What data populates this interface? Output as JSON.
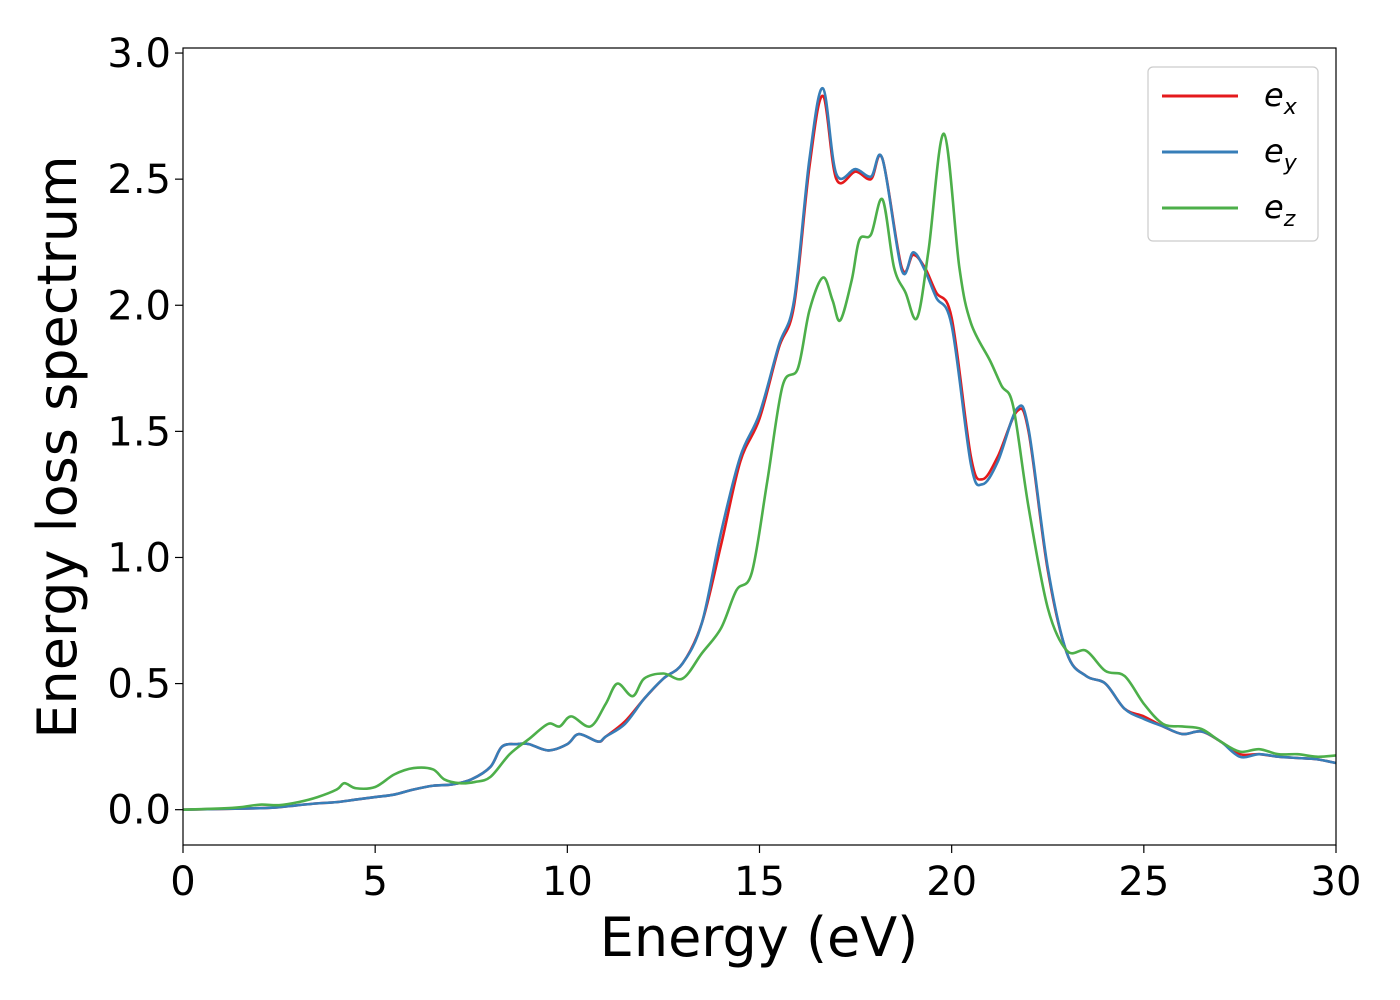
{
  "chart_data": {
    "type": "line",
    "title": "",
    "xlabel": "Energy (eV)",
    "ylabel": "Energy loss spectrum",
    "xlim": [
      0,
      30
    ],
    "ylim": [
      -0.14,
      3.02
    ],
    "xticks": [
      "0",
      "5",
      "10",
      "15",
      "20",
      "25",
      "30"
    ],
    "yticks": [
      "0.0",
      "0.5",
      "1.0",
      "1.5",
      "2.0",
      "2.5",
      "3.0"
    ],
    "grid": false,
    "legend_position": "top-right",
    "series": [
      {
        "name": "e",
        "sub": "x",
        "color": "#e41a1c",
        "points": [
          [
            0,
            0
          ],
          [
            1,
            0.003
          ],
          [
            2,
            0.006
          ],
          [
            2.5,
            0.01
          ],
          [
            3,
            0.018
          ],
          [
            3.5,
            0.025
          ],
          [
            4,
            0.03
          ],
          [
            4.5,
            0.04
          ],
          [
            5,
            0.05
          ],
          [
            5.5,
            0.06
          ],
          [
            6,
            0.08
          ],
          [
            6.5,
            0.095
          ],
          [
            7,
            0.1
          ],
          [
            7.5,
            0.12
          ],
          [
            8,
            0.17
          ],
          [
            8.3,
            0.25
          ],
          [
            8.7,
            0.26
          ],
          [
            9,
            0.26
          ],
          [
            9.5,
            0.235
          ],
          [
            10,
            0.26
          ],
          [
            10.3,
            0.3
          ],
          [
            10.8,
            0.27
          ],
          [
            11,
            0.29
          ],
          [
            11.5,
            0.35
          ],
          [
            12,
            0.44
          ],
          [
            12.5,
            0.52
          ],
          [
            13,
            0.58
          ],
          [
            13.5,
            0.74
          ],
          [
            14,
            1.05
          ],
          [
            14.5,
            1.38
          ],
          [
            15,
            1.55
          ],
          [
            15.5,
            1.83
          ],
          [
            15.9,
            2.0
          ],
          [
            16.3,
            2.55
          ],
          [
            16.65,
            2.83
          ],
          [
            17,
            2.5
          ],
          [
            17.5,
            2.53
          ],
          [
            17.9,
            2.5
          ],
          [
            18.2,
            2.58
          ],
          [
            18.7,
            2.15
          ],
          [
            19,
            2.2
          ],
          [
            19.3,
            2.15
          ],
          [
            19.6,
            2.05
          ],
          [
            20,
            1.95
          ],
          [
            20.5,
            1.4
          ],
          [
            20.8,
            1.31
          ],
          [
            21.2,
            1.4
          ],
          [
            21.7,
            1.58
          ],
          [
            22,
            1.5
          ],
          [
            22.5,
            0.95
          ],
          [
            23,
            0.62
          ],
          [
            23.5,
            0.53
          ],
          [
            24,
            0.5
          ],
          [
            24.5,
            0.4
          ],
          [
            25,
            0.37
          ],
          [
            25.5,
            0.33
          ],
          [
            26,
            0.3
          ],
          [
            26.5,
            0.31
          ],
          [
            27,
            0.27
          ],
          [
            27.5,
            0.22
          ],
          [
            28,
            0.22
          ],
          [
            28.5,
            0.21
          ],
          [
            29,
            0.205
          ],
          [
            29.5,
            0.2
          ],
          [
            30,
            0.185
          ]
        ]
      },
      {
        "name": "e",
        "sub": "y",
        "color": "#377eb8",
        "points": [
          [
            0,
            0
          ],
          [
            1,
            0.003
          ],
          [
            2,
            0.006
          ],
          [
            2.5,
            0.01
          ],
          [
            3,
            0.018
          ],
          [
            3.5,
            0.025
          ],
          [
            4,
            0.03
          ],
          [
            4.5,
            0.04
          ],
          [
            5,
            0.05
          ],
          [
            5.5,
            0.06
          ],
          [
            6,
            0.08
          ],
          [
            6.5,
            0.095
          ],
          [
            7,
            0.1
          ],
          [
            7.5,
            0.12
          ],
          [
            8,
            0.17
          ],
          [
            8.3,
            0.25
          ],
          [
            8.7,
            0.26
          ],
          [
            9,
            0.26
          ],
          [
            9.5,
            0.235
          ],
          [
            10,
            0.26
          ],
          [
            10.3,
            0.3
          ],
          [
            10.8,
            0.27
          ],
          [
            11,
            0.29
          ],
          [
            11.5,
            0.34
          ],
          [
            12,
            0.44
          ],
          [
            12.5,
            0.52
          ],
          [
            13,
            0.58
          ],
          [
            13.5,
            0.74
          ],
          [
            14,
            1.1
          ],
          [
            14.5,
            1.4
          ],
          [
            15,
            1.57
          ],
          [
            15.5,
            1.84
          ],
          [
            15.9,
            2.02
          ],
          [
            16.3,
            2.58
          ],
          [
            16.65,
            2.86
          ],
          [
            17,
            2.52
          ],
          [
            17.5,
            2.54
          ],
          [
            17.9,
            2.51
          ],
          [
            18.2,
            2.58
          ],
          [
            18.7,
            2.14
          ],
          [
            19,
            2.21
          ],
          [
            19.3,
            2.14
          ],
          [
            19.6,
            2.03
          ],
          [
            20,
            1.92
          ],
          [
            20.5,
            1.37
          ],
          [
            20.8,
            1.29
          ],
          [
            21.2,
            1.38
          ],
          [
            21.7,
            1.59
          ],
          [
            22,
            1.51
          ],
          [
            22.5,
            0.96
          ],
          [
            23,
            0.62
          ],
          [
            23.5,
            0.53
          ],
          [
            24,
            0.5
          ],
          [
            24.5,
            0.4
          ],
          [
            25,
            0.36
          ],
          [
            25.5,
            0.33
          ],
          [
            26,
            0.3
          ],
          [
            26.5,
            0.31
          ],
          [
            27,
            0.27
          ],
          [
            27.5,
            0.21
          ],
          [
            28,
            0.22
          ],
          [
            28.5,
            0.21
          ],
          [
            29,
            0.205
          ],
          [
            29.5,
            0.2
          ],
          [
            30,
            0.185
          ]
        ]
      },
      {
        "name": "e",
        "sub": "z",
        "color": "#4daf4a",
        "points": [
          [
            0,
            0
          ],
          [
            1,
            0.005
          ],
          [
            1.5,
            0.01
          ],
          [
            2,
            0.02
          ],
          [
            2.5,
            0.018
          ],
          [
            3,
            0.03
          ],
          [
            3.5,
            0.05
          ],
          [
            4,
            0.08
          ],
          [
            4.2,
            0.105
          ],
          [
            4.5,
            0.085
          ],
          [
            5,
            0.09
          ],
          [
            5.5,
            0.14
          ],
          [
            6,
            0.165
          ],
          [
            6.5,
            0.16
          ],
          [
            6.8,
            0.12
          ],
          [
            7.2,
            0.105
          ],
          [
            7.6,
            0.11
          ],
          [
            8,
            0.13
          ],
          [
            8.5,
            0.22
          ],
          [
            9,
            0.28
          ],
          [
            9.5,
            0.34
          ],
          [
            9.8,
            0.33
          ],
          [
            10.1,
            0.37
          ],
          [
            10.6,
            0.33
          ],
          [
            11,
            0.42
          ],
          [
            11.3,
            0.5
          ],
          [
            11.7,
            0.45
          ],
          [
            12,
            0.52
          ],
          [
            12.5,
            0.54
          ],
          [
            13,
            0.52
          ],
          [
            13.5,
            0.62
          ],
          [
            14,
            0.72
          ],
          [
            14.4,
            0.87
          ],
          [
            14.8,
            0.94
          ],
          [
            15.2,
            1.3
          ],
          [
            15.6,
            1.68
          ],
          [
            16,
            1.75
          ],
          [
            16.3,
            1.98
          ],
          [
            16.65,
            2.11
          ],
          [
            16.9,
            2.02
          ],
          [
            17.1,
            1.94
          ],
          [
            17.4,
            2.1
          ],
          [
            17.6,
            2.26
          ],
          [
            17.9,
            2.28
          ],
          [
            18.2,
            2.42
          ],
          [
            18.5,
            2.15
          ],
          [
            18.8,
            2.05
          ],
          [
            19.1,
            1.95
          ],
          [
            19.4,
            2.22
          ],
          [
            19.8,
            2.68
          ],
          [
            20.2,
            2.15
          ],
          [
            20.5,
            1.93
          ],
          [
            21,
            1.78
          ],
          [
            21.3,
            1.68
          ],
          [
            21.6,
            1.6
          ],
          [
            22,
            1.2
          ],
          [
            22.5,
            0.8
          ],
          [
            23,
            0.63
          ],
          [
            23.5,
            0.63
          ],
          [
            24,
            0.55
          ],
          [
            24.5,
            0.53
          ],
          [
            25,
            0.42
          ],
          [
            25.5,
            0.34
          ],
          [
            26,
            0.33
          ],
          [
            26.5,
            0.32
          ],
          [
            27,
            0.27
          ],
          [
            27.5,
            0.23
          ],
          [
            28,
            0.24
          ],
          [
            28.5,
            0.22
          ],
          [
            29,
            0.22
          ],
          [
            29.5,
            0.21
          ],
          [
            30,
            0.215
          ]
        ]
      }
    ]
  }
}
